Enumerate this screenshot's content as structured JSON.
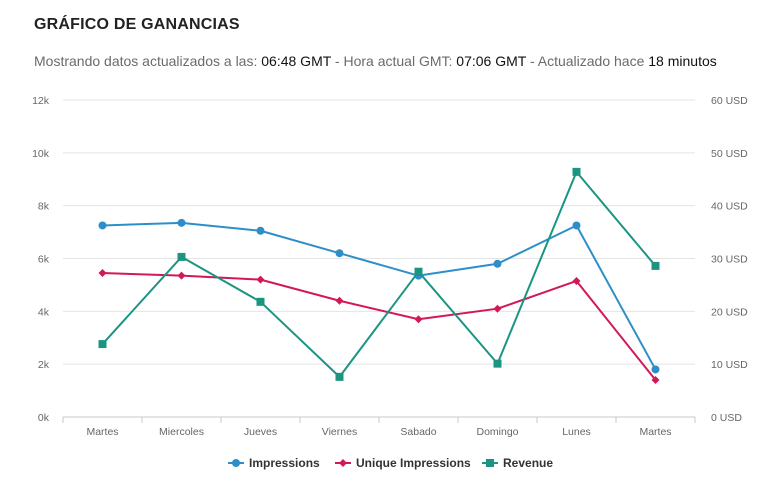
{
  "header": {
    "title": "GRÁFICO DE GANANCIAS",
    "subtitle_prefix": "Mostrando datos actualizados a las:",
    "data_time": "06:48 GMT",
    "sep1": "- Hora actual GMT:",
    "current_time": "07:06 GMT",
    "sep2": "- Actualizado hace",
    "ago": "18 minutos"
  },
  "chart_data": {
    "type": "line",
    "title": "",
    "xlabel": "",
    "ylabel": "",
    "categories": [
      "Martes",
      "Miercoles",
      "Jueves",
      "Viernes",
      "Sabado",
      "Domingo",
      "Lunes",
      "Martes"
    ],
    "y_left": {
      "ylim": [
        0,
        12000
      ],
      "ticks": [
        0,
        2000,
        4000,
        6000,
        8000,
        10000,
        12000
      ],
      "tick_labels": [
        "0k",
        "2k",
        "4k",
        "6k",
        "8k",
        "10k",
        "12k"
      ]
    },
    "y_right": {
      "ylim": [
        0,
        60
      ],
      "ticks": [
        0,
        10,
        20,
        30,
        40,
        50,
        60
      ],
      "tick_labels": [
        "0 USD",
        "10 USD",
        "20 USD",
        "30 USD",
        "40 USD",
        "50 USD",
        "60 USD"
      ]
    },
    "grid": true,
    "legend": "bottom-center",
    "series": [
      {
        "name": "Impressions",
        "axis": "left",
        "color": "#2e8fc8",
        "marker": "circle",
        "values": [
          7250,
          7350,
          7050,
          6200,
          5350,
          5800,
          7250,
          1800
        ]
      },
      {
        "name": "Unique Impressions",
        "axis": "left",
        "color": "#d3175b",
        "marker": "diamond",
        "values": [
          5450,
          5350,
          5200,
          4400,
          3700,
          4100,
          5150,
          1400
        ]
      },
      {
        "name": "Revenue",
        "axis": "right",
        "color": "#1b9582",
        "marker": "square",
        "values": [
          13.8,
          30.3,
          21.8,
          7.6,
          27.5,
          10.1,
          46.4,
          28.6
        ]
      }
    ]
  }
}
